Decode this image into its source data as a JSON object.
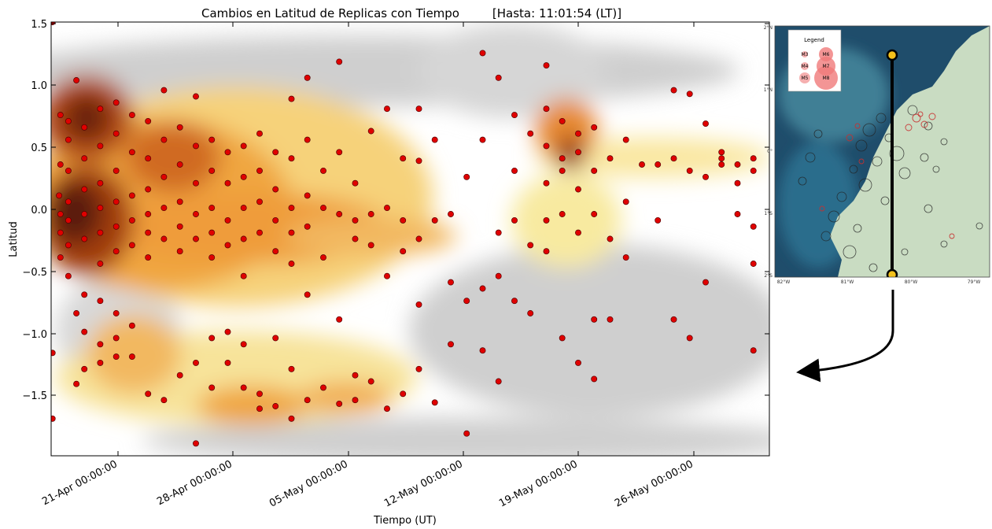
{
  "chart_data": {
    "type": "scatter",
    "title": "Cambios en Latitud de Replicas con Tiempo",
    "title_note": "[Hasta: 11:01:54 (LT)]",
    "xlabel": "Tiempo (UT)",
    "ylabel": "Latitud",
    "x_tick_labels": [
      "21-Apr 00:00:00",
      "28-Apr 00:00:00",
      "05-May 00:00:00",
      "12-May 00:00:00",
      "19-May 00:00:00",
      "26-May 00:00:00"
    ],
    "y_tick_labels": [
      "1.5",
      "1.0",
      "0.5",
      "0.0",
      "−0.5",
      "−1.0",
      "−1.5"
    ],
    "xlim": [
      "2016-04-16 22:00",
      "2016-06-01 00:00"
    ],
    "ylim": [
      -2.0,
      1.5
    ],
    "heatmap_underlay": true,
    "point_color": "#e00000",
    "point_edge": "#550000",
    "points": [
      {
        "x": "2016-04-17 00:00",
        "y": 1.5
      },
      {
        "x": "2016-04-17 12:00",
        "y": 0.75
      },
      {
        "x": "2016-04-17 12:00",
        "y": 0.35
      },
      {
        "x": "2016-04-17 10:00",
        "y": 0.1
      },
      {
        "x": "2016-04-17 12:00",
        "y": -0.05
      },
      {
        "x": "2016-04-17 12:00",
        "y": -0.2
      },
      {
        "x": "2016-04-17 12:00",
        "y": -0.4
      },
      {
        "x": "2016-04-17 00:00",
        "y": -1.17
      },
      {
        "x": "2016-04-17 00:00",
        "y": -1.7
      },
      {
        "x": "2016-04-18 00:00",
        "y": 0.7
      },
      {
        "x": "2016-04-18 00:00",
        "y": 0.55
      },
      {
        "x": "2016-04-18 00:00",
        "y": 0.3
      },
      {
        "x": "2016-04-18 00:00",
        "y": 0.05
      },
      {
        "x": "2016-04-18 00:00",
        "y": -0.1
      },
      {
        "x": "2016-04-18 00:00",
        "y": -0.3
      },
      {
        "x": "2016-04-18 00:00",
        "y": -0.55
      },
      {
        "x": "2016-04-18 12:00",
        "y": -0.85
      },
      {
        "x": "2016-04-18 12:00",
        "y": -1.42
      },
      {
        "x": "2016-04-18 12:00",
        "y": 1.03
      },
      {
        "x": "2016-04-19 00:00",
        "y": 0.65
      },
      {
        "x": "2016-04-19 00:00",
        "y": 0.4
      },
      {
        "x": "2016-04-19 00:00",
        "y": 0.15
      },
      {
        "x": "2016-04-19 00:00",
        "y": -0.05
      },
      {
        "x": "2016-04-19 00:00",
        "y": -0.25
      },
      {
        "x": "2016-04-19 00:00",
        "y": -0.7
      },
      {
        "x": "2016-04-19 00:00",
        "y": -1.0
      },
      {
        "x": "2016-04-19 00:00",
        "y": -1.3
      },
      {
        "x": "2016-04-20 00:00",
        "y": 0.8
      },
      {
        "x": "2016-04-20 00:00",
        "y": 0.5
      },
      {
        "x": "2016-04-20 00:00",
        "y": 0.2
      },
      {
        "x": "2016-04-20 00:00",
        "y": 0.0
      },
      {
        "x": "2016-04-20 00:00",
        "y": -0.2
      },
      {
        "x": "2016-04-20 00:00",
        "y": -0.45
      },
      {
        "x": "2016-04-20 00:00",
        "y": -0.75
      },
      {
        "x": "2016-04-20 00:00",
        "y": -1.1
      },
      {
        "x": "2016-04-20 00:00",
        "y": -1.25
      },
      {
        "x": "2016-04-21 00:00",
        "y": 0.85
      },
      {
        "x": "2016-04-21 00:00",
        "y": 0.6
      },
      {
        "x": "2016-04-21 00:00",
        "y": 0.3
      },
      {
        "x": "2016-04-21 00:00",
        "y": 0.05
      },
      {
        "x": "2016-04-21 00:00",
        "y": -0.15
      },
      {
        "x": "2016-04-21 00:00",
        "y": -0.35
      },
      {
        "x": "2016-04-21 00:00",
        "y": -0.85
      },
      {
        "x": "2016-04-21 00:00",
        "y": -1.05
      },
      {
        "x": "2016-04-21 00:00",
        "y": -1.2
      },
      {
        "x": "2016-04-22 00:00",
        "y": 0.75
      },
      {
        "x": "2016-04-22 00:00",
        "y": 0.45
      },
      {
        "x": "2016-04-22 00:00",
        "y": 0.1
      },
      {
        "x": "2016-04-22 00:00",
        "y": -0.1
      },
      {
        "x": "2016-04-22 00:00",
        "y": -0.3
      },
      {
        "x": "2016-04-22 00:00",
        "y": -0.95
      },
      {
        "x": "2016-04-22 00:00",
        "y": -1.2
      },
      {
        "x": "2016-04-23 00:00",
        "y": 0.7
      },
      {
        "x": "2016-04-23 00:00",
        "y": 0.4
      },
      {
        "x": "2016-04-23 00:00",
        "y": 0.15
      },
      {
        "x": "2016-04-23 00:00",
        "y": -0.05
      },
      {
        "x": "2016-04-23 00:00",
        "y": -0.2
      },
      {
        "x": "2016-04-23 00:00",
        "y": -0.4
      },
      {
        "x": "2016-04-23 00:00",
        "y": -1.5
      },
      {
        "x": "2016-04-24 00:00",
        "y": 0.95
      },
      {
        "x": "2016-04-24 00:00",
        "y": 0.55
      },
      {
        "x": "2016-04-24 00:00",
        "y": 0.25
      },
      {
        "x": "2016-04-24 00:00",
        "y": 0.0
      },
      {
        "x": "2016-04-24 00:00",
        "y": -0.25
      },
      {
        "x": "2016-04-24 00:00",
        "y": -1.55
      },
      {
        "x": "2016-04-25 00:00",
        "y": 0.65
      },
      {
        "x": "2016-04-25 00:00",
        "y": 0.35
      },
      {
        "x": "2016-04-25 00:00",
        "y": 0.05
      },
      {
        "x": "2016-04-25 00:00",
        "y": -0.15
      },
      {
        "x": "2016-04-25 00:00",
        "y": -0.35
      },
      {
        "x": "2016-04-25 00:00",
        "y": -1.35
      },
      {
        "x": "2016-04-26 00:00",
        "y": 0.9
      },
      {
        "x": "2016-04-26 00:00",
        "y": 0.5
      },
      {
        "x": "2016-04-26 00:00",
        "y": 0.2
      },
      {
        "x": "2016-04-26 00:00",
        "y": -0.05
      },
      {
        "x": "2016-04-26 00:00",
        "y": -0.25
      },
      {
        "x": "2016-04-26 00:00",
        "y": -1.25
      },
      {
        "x": "2016-04-26 00:00",
        "y": -1.9
      },
      {
        "x": "2016-04-27 00:00",
        "y": 0.55
      },
      {
        "x": "2016-04-27 00:00",
        "y": 0.3
      },
      {
        "x": "2016-04-27 00:00",
        "y": 0.0
      },
      {
        "x": "2016-04-27 00:00",
        "y": -0.2
      },
      {
        "x": "2016-04-27 00:00",
        "y": -0.4
      },
      {
        "x": "2016-04-27 00:00",
        "y": -1.05
      },
      {
        "x": "2016-04-27 00:00",
        "y": -1.45
      },
      {
        "x": "2016-04-28 00:00",
        "y": 0.45
      },
      {
        "x": "2016-04-28 00:00",
        "y": 0.2
      },
      {
        "x": "2016-04-28 00:00",
        "y": -0.1
      },
      {
        "x": "2016-04-28 00:00",
        "y": -0.3
      },
      {
        "x": "2016-04-28 00:00",
        "y": -1.0
      },
      {
        "x": "2016-04-28 00:00",
        "y": -1.25
      },
      {
        "x": "2016-04-29 00:00",
        "y": 0.5
      },
      {
        "x": "2016-04-29 00:00",
        "y": 0.25
      },
      {
        "x": "2016-04-29 00:00",
        "y": 0.0
      },
      {
        "x": "2016-04-29 00:00",
        "y": -0.25
      },
      {
        "x": "2016-04-29 00:00",
        "y": -0.55
      },
      {
        "x": "2016-04-29 00:00",
        "y": -1.1
      },
      {
        "x": "2016-04-29 00:00",
        "y": -1.45
      },
      {
        "x": "2016-04-30 00:00",
        "y": 0.6
      },
      {
        "x": "2016-04-30 00:00",
        "y": 0.3
      },
      {
        "x": "2016-04-30 00:00",
        "y": 0.05
      },
      {
        "x": "2016-04-30 00:00",
        "y": -0.2
      },
      {
        "x": "2016-04-30 00:00",
        "y": -1.5
      },
      {
        "x": "2016-04-30 00:00",
        "y": -1.62
      },
      {
        "x": "2016-05-01 00:00",
        "y": 0.45
      },
      {
        "x": "2016-05-01 00:00",
        "y": 0.15
      },
      {
        "x": "2016-05-01 00:00",
        "y": -0.1
      },
      {
        "x": "2016-05-01 00:00",
        "y": -0.35
      },
      {
        "x": "2016-05-01 00:00",
        "y": -1.05
      },
      {
        "x": "2016-05-01 00:00",
        "y": -1.6
      },
      {
        "x": "2016-05-02 00:00",
        "y": 0.88
      },
      {
        "x": "2016-05-02 00:00",
        "y": 0.4
      },
      {
        "x": "2016-05-02 00:00",
        "y": 0.0
      },
      {
        "x": "2016-05-02 00:00",
        "y": -0.2
      },
      {
        "x": "2016-05-02 00:00",
        "y": -0.45
      },
      {
        "x": "2016-05-02 00:00",
        "y": -1.3
      },
      {
        "x": "2016-05-02 00:00",
        "y": -1.7
      },
      {
        "x": "2016-05-03 00:00",
        "y": 1.05
      },
      {
        "x": "2016-05-03 00:00",
        "y": 0.55
      },
      {
        "x": "2016-05-03 00:00",
        "y": 0.1
      },
      {
        "x": "2016-05-03 00:00",
        "y": -0.15
      },
      {
        "x": "2016-05-03 00:00",
        "y": -0.7
      },
      {
        "x": "2016-05-03 00:00",
        "y": -1.55
      },
      {
        "x": "2016-05-04 00:00",
        "y": 0.3
      },
      {
        "x": "2016-05-04 00:00",
        "y": 0.0
      },
      {
        "x": "2016-05-04 00:00",
        "y": -0.4
      },
      {
        "x": "2016-05-04 00:00",
        "y": -1.45
      },
      {
        "x": "2016-05-05 00:00",
        "y": 1.18
      },
      {
        "x": "2016-05-05 00:00",
        "y": 0.45
      },
      {
        "x": "2016-05-05 00:00",
        "y": -0.05
      },
      {
        "x": "2016-05-05 00:00",
        "y": -0.9
      },
      {
        "x": "2016-05-05 00:00",
        "y": -1.58
      },
      {
        "x": "2016-05-06 00:00",
        "y": 0.2
      },
      {
        "x": "2016-05-06 00:00",
        "y": -0.1
      },
      {
        "x": "2016-05-06 00:00",
        "y": -0.25
      },
      {
        "x": "2016-05-06 00:00",
        "y": -1.35
      },
      {
        "x": "2016-05-06 00:00",
        "y": -1.55
      },
      {
        "x": "2016-05-07 00:00",
        "y": 0.62
      },
      {
        "x": "2016-05-07 00:00",
        "y": -0.05
      },
      {
        "x": "2016-05-07 00:00",
        "y": -0.3
      },
      {
        "x": "2016-05-07 00:00",
        "y": -1.4
      },
      {
        "x": "2016-05-08 00:00",
        "y": 0.8
      },
      {
        "x": "2016-05-08 00:00",
        "y": 0.0
      },
      {
        "x": "2016-05-08 00:00",
        "y": -0.55
      },
      {
        "x": "2016-05-08 00:00",
        "y": -1.62
      },
      {
        "x": "2016-05-09 00:00",
        "y": 0.4
      },
      {
        "x": "2016-05-09 00:00",
        "y": -0.1
      },
      {
        "x": "2016-05-09 00:00",
        "y": -0.35
      },
      {
        "x": "2016-05-09 00:00",
        "y": -1.5
      },
      {
        "x": "2016-05-10 00:00",
        "y": 0.8
      },
      {
        "x": "2016-05-10 00:00",
        "y": 0.38
      },
      {
        "x": "2016-05-10 00:00",
        "y": -0.25
      },
      {
        "x": "2016-05-10 00:00",
        "y": -0.78
      },
      {
        "x": "2016-05-10 00:00",
        "y": -1.3
      },
      {
        "x": "2016-05-11 00:00",
        "y": 0.55
      },
      {
        "x": "2016-05-11 00:00",
        "y": -0.1
      },
      {
        "x": "2016-05-11 00:00",
        "y": -1.57
      },
      {
        "x": "2016-05-12 00:00",
        "y": -0.05
      },
      {
        "x": "2016-05-12 00:00",
        "y": -0.6
      },
      {
        "x": "2016-05-12 00:00",
        "y": -1.1
      },
      {
        "x": "2016-05-13 00:00",
        "y": 0.25
      },
      {
        "x": "2016-05-13 00:00",
        "y": -0.75
      },
      {
        "x": "2016-05-13 00:00",
        "y": -1.82
      },
      {
        "x": "2016-05-14 00:00",
        "y": 1.25
      },
      {
        "x": "2016-05-14 00:00",
        "y": 0.55
      },
      {
        "x": "2016-05-14 00:00",
        "y": -0.65
      },
      {
        "x": "2016-05-14 00:00",
        "y": -1.15
      },
      {
        "x": "2016-05-15 00:00",
        "y": 1.05
      },
      {
        "x": "2016-05-15 00:00",
        "y": -0.2
      },
      {
        "x": "2016-05-15 00:00",
        "y": -0.55
      },
      {
        "x": "2016-05-15 00:00",
        "y": -1.4
      },
      {
        "x": "2016-05-16 00:00",
        "y": 0.75
      },
      {
        "x": "2016-05-16 00:00",
        "y": 0.3
      },
      {
        "x": "2016-05-16 00:00",
        "y": -0.1
      },
      {
        "x": "2016-05-16 00:00",
        "y": -0.75
      },
      {
        "x": "2016-05-17 00:00",
        "y": 0.6
      },
      {
        "x": "2016-05-17 00:00",
        "y": -0.3
      },
      {
        "x": "2016-05-17 00:00",
        "y": -0.85
      },
      {
        "x": "2016-05-18 00:00",
        "y": 1.15
      },
      {
        "x": "2016-05-18 00:00",
        "y": 0.8
      },
      {
        "x": "2016-05-18 00:00",
        "y": 0.5
      },
      {
        "x": "2016-05-18 00:00",
        "y": 0.2
      },
      {
        "x": "2016-05-18 00:00",
        "y": -0.1
      },
      {
        "x": "2016-05-18 00:00",
        "y": -0.35
      },
      {
        "x": "2016-05-19 00:00",
        "y": 0.7
      },
      {
        "x": "2016-05-19 00:00",
        "y": 0.4
      },
      {
        "x": "2016-05-19 00:00",
        "y": 0.3
      },
      {
        "x": "2016-05-19 00:00",
        "y": -0.05
      },
      {
        "x": "2016-05-19 00:00",
        "y": -1.05
      },
      {
        "x": "2016-05-20 00:00",
        "y": 0.6
      },
      {
        "x": "2016-05-20 00:00",
        "y": 0.45
      },
      {
        "x": "2016-05-20 00:00",
        "y": 0.15
      },
      {
        "x": "2016-05-20 00:00",
        "y": -0.2
      },
      {
        "x": "2016-05-20 00:00",
        "y": -1.25
      },
      {
        "x": "2016-05-21 00:00",
        "y": 0.65
      },
      {
        "x": "2016-05-21 00:00",
        "y": 0.3
      },
      {
        "x": "2016-05-21 00:00",
        "y": -0.05
      },
      {
        "x": "2016-05-21 00:00",
        "y": -0.9
      },
      {
        "x": "2016-05-21 00:00",
        "y": -1.38
      },
      {
        "x": "2016-05-22 00:00",
        "y": 0.4
      },
      {
        "x": "2016-05-22 00:00",
        "y": -0.25
      },
      {
        "x": "2016-05-22 00:00",
        "y": -0.9
      },
      {
        "x": "2016-05-23 00:00",
        "y": 0.55
      },
      {
        "x": "2016-05-23 00:00",
        "y": 0.05
      },
      {
        "x": "2016-05-23 00:00",
        "y": -0.4
      },
      {
        "x": "2016-05-24 00:00",
        "y": 0.35
      },
      {
        "x": "2016-05-25 00:00",
        "y": 0.35
      },
      {
        "x": "2016-05-25 00:00",
        "y": -0.1
      },
      {
        "x": "2016-05-26 00:00",
        "y": 0.95
      },
      {
        "x": "2016-05-26 00:00",
        "y": 0.4
      },
      {
        "x": "2016-05-26 00:00",
        "y": -0.9
      },
      {
        "x": "2016-05-27 00:00",
        "y": 0.92
      },
      {
        "x": "2016-05-27 00:00",
        "y": 0.3
      },
      {
        "x": "2016-05-27 00:00",
        "y": -1.05
      },
      {
        "x": "2016-05-28 00:00",
        "y": 0.68
      },
      {
        "x": "2016-05-28 00:00",
        "y": 0.25
      },
      {
        "x": "2016-05-28 00:00",
        "y": -0.6
      },
      {
        "x": "2016-05-29 00:00",
        "y": 0.45
      },
      {
        "x": "2016-05-29 00:00",
        "y": 0.4
      },
      {
        "x": "2016-05-29 00:00",
        "y": 0.35
      },
      {
        "x": "2016-05-30 00:00",
        "y": 0.35
      },
      {
        "x": "2016-05-30 00:00",
        "y": 0.2
      },
      {
        "x": "2016-05-30 00:00",
        "y": -0.05
      },
      {
        "x": "2016-05-31 00:00",
        "y": 0.4
      },
      {
        "x": "2016-05-31 00:00",
        "y": 0.3
      },
      {
        "x": "2016-05-31 00:00",
        "y": -0.15
      },
      {
        "x": "2016-05-31 00:00",
        "y": -0.45
      },
      {
        "x": "2016-05-31 00:00",
        "y": -1.15
      }
    ]
  },
  "inset_map": {
    "legend_title": "Legend",
    "legend_items": [
      "M3",
      "M4",
      "M5",
      "M6",
      "M7",
      "M8"
    ],
    "lat_labels": [
      "2°N",
      "1°N",
      "0°",
      "1°S",
      "2°S"
    ],
    "lon_labels": [
      "82°W",
      "81°W",
      "80°W",
      "79°W"
    ],
    "ocean_color": "#1f4d6b",
    "land_color": "#c9dcc2",
    "marker_color": "#f3c11b"
  }
}
